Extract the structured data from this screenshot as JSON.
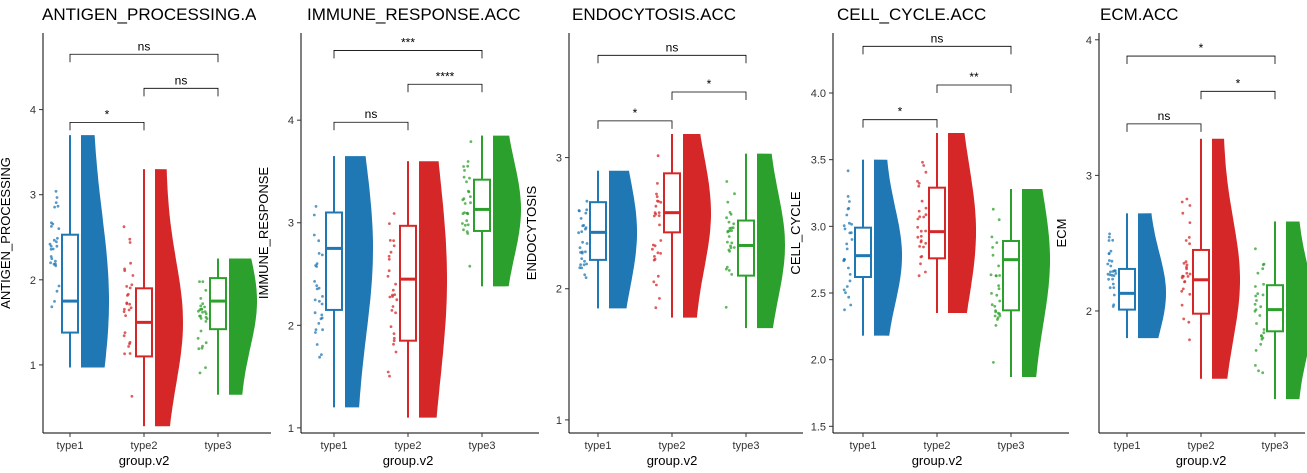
{
  "chart_data": [
    {
      "type": "raincloud",
      "title": "ANTIGEN_PROCESSING.A",
      "ylabel": "ANTIGEN_PROCESSING",
      "xlabel": "group.v2",
      "categories": [
        "type1",
        "type2",
        "type3"
      ],
      "ylim": [
        0.2,
        4.9
      ],
      "yticks": [
        1,
        2,
        3,
        4
      ],
      "colors": [
        "#1f77b4",
        "#d62728",
        "#2ca02c"
      ],
      "boxes": [
        {
          "min": 0.97,
          "q1": 1.38,
          "median": 1.75,
          "q3": 2.53,
          "max": 3.7
        },
        {
          "min": 0.28,
          "q1": 1.1,
          "median": 1.5,
          "q3": 1.9,
          "max": 3.3
        },
        {
          "min": 0.65,
          "q1": 1.42,
          "median": 1.75,
          "q3": 2.02,
          "max": 2.25
        }
      ],
      "brackets": [
        {
          "from": 0,
          "to": 1,
          "y": 3.85,
          "label": "*"
        },
        {
          "from": 1,
          "to": 2,
          "y": 4.25,
          "label": "ns"
        },
        {
          "from": 0,
          "to": 2,
          "y": 4.65,
          "label": "ns"
        }
      ],
      "grid": false,
      "legend": "none"
    },
    {
      "type": "raincloud",
      "title": "IMMUNE_RESPONSE.ACC",
      "ylabel": "IMMUNE_RESPONSE",
      "xlabel": "group.v2",
      "categories": [
        "type1",
        "type2",
        "type3"
      ],
      "ylim": [
        0.95,
        4.85
      ],
      "yticks": [
        1,
        2,
        3,
        4
      ],
      "colors": [
        "#1f77b4",
        "#d62728",
        "#2ca02c"
      ],
      "boxes": [
        {
          "min": 1.2,
          "q1": 2.15,
          "median": 2.75,
          "q3": 3.1,
          "max": 3.65
        },
        {
          "min": 1.1,
          "q1": 1.85,
          "median": 2.45,
          "q3": 2.97,
          "max": 3.6
        },
        {
          "min": 2.38,
          "q1": 2.92,
          "median": 3.13,
          "q3": 3.42,
          "max": 3.85
        }
      ],
      "brackets": [
        {
          "from": 0,
          "to": 1,
          "y": 3.98,
          "label": "ns"
        },
        {
          "from": 1,
          "to": 2,
          "y": 4.35,
          "label": "****"
        },
        {
          "from": 0,
          "to": 2,
          "y": 4.68,
          "label": "***"
        }
      ],
      "grid": false,
      "legend": "none"
    },
    {
      "type": "raincloud",
      "title": "ENDOCYTOSIS.ACC",
      "ylabel": "ENDOCYTOSIS",
      "xlabel": "group.v2",
      "categories": [
        "type1",
        "type2",
        "type3"
      ],
      "ylim": [
        0.9,
        3.95
      ],
      "yticks": [
        1,
        2,
        3
      ],
      "colors": [
        "#1f77b4",
        "#d62728",
        "#2ca02c"
      ],
      "boxes": [
        {
          "min": 1.85,
          "q1": 2.22,
          "median": 2.43,
          "q3": 2.66,
          "max": 2.9
        },
        {
          "min": 1.78,
          "q1": 2.43,
          "median": 2.58,
          "q3": 2.88,
          "max": 3.18
        },
        {
          "min": 1.7,
          "q1": 2.1,
          "median": 2.33,
          "q3": 2.52,
          "max": 3.03
        }
      ],
      "brackets": [
        {
          "from": 0,
          "to": 1,
          "y": 3.28,
          "label": "*"
        },
        {
          "from": 1,
          "to": 2,
          "y": 3.5,
          "label": "*"
        },
        {
          "from": 0,
          "to": 2,
          "y": 3.78,
          "label": "ns"
        }
      ],
      "grid": false,
      "legend": "none"
    },
    {
      "type": "raincloud",
      "title": "CELL_CYCLE.ACC",
      "ylabel": "CELL_CYCLE",
      "xlabel": "group.v2",
      "categories": [
        "type1",
        "type2",
        "type3"
      ],
      "ylim": [
        1.45,
        4.45
      ],
      "yticks": [
        1.5,
        2.0,
        2.5,
        3.0,
        3.5,
        4.0
      ],
      "yticklabels": [
        "1.5",
        "2.0",
        "2.5",
        "3.0",
        "3.5",
        "4.0"
      ],
      "colors": [
        "#1f77b4",
        "#d62728",
        "#2ca02c"
      ],
      "boxes": [
        {
          "min": 2.18,
          "q1": 2.62,
          "median": 2.78,
          "q3": 2.99,
          "max": 3.5
        },
        {
          "min": 2.35,
          "q1": 2.76,
          "median": 2.96,
          "q3": 3.29,
          "max": 3.7
        },
        {
          "min": 1.87,
          "q1": 2.37,
          "median": 2.75,
          "q3": 2.89,
          "max": 3.28
        }
      ],
      "brackets": [
        {
          "from": 0,
          "to": 1,
          "y": 3.8,
          "label": "*"
        },
        {
          "from": 1,
          "to": 2,
          "y": 4.06,
          "label": "**"
        },
        {
          "from": 0,
          "to": 2,
          "y": 4.35,
          "label": "ns"
        }
      ],
      "grid": false,
      "legend": "none"
    },
    {
      "type": "raincloud",
      "title": "ECM.ACC",
      "ylabel": "ECM",
      "xlabel": "group.v2",
      "categories": [
        "type1",
        "type2",
        "type3"
      ],
      "ylim": [
        1.1,
        4.05
      ],
      "yticks": [
        2,
        3,
        4
      ],
      "colors": [
        "#1f77b4",
        "#d62728",
        "#2ca02c"
      ],
      "boxes": [
        {
          "min": 1.8,
          "q1": 2.01,
          "median": 2.13,
          "q3": 2.31,
          "max": 2.72
        },
        {
          "min": 1.5,
          "q1": 1.98,
          "median": 2.23,
          "q3": 2.45,
          "max": 3.27
        },
        {
          "min": 1.35,
          "q1": 1.85,
          "median": 2.01,
          "q3": 2.19,
          "max": 2.66
        }
      ],
      "brackets": [
        {
          "from": 0,
          "to": 1,
          "y": 3.38,
          "label": "ns"
        },
        {
          "from": 1,
          "to": 2,
          "y": 3.62,
          "label": "*"
        },
        {
          "from": 0,
          "to": 2,
          "y": 3.88,
          "label": "*"
        }
      ],
      "grid": false,
      "legend": "none"
    }
  ]
}
